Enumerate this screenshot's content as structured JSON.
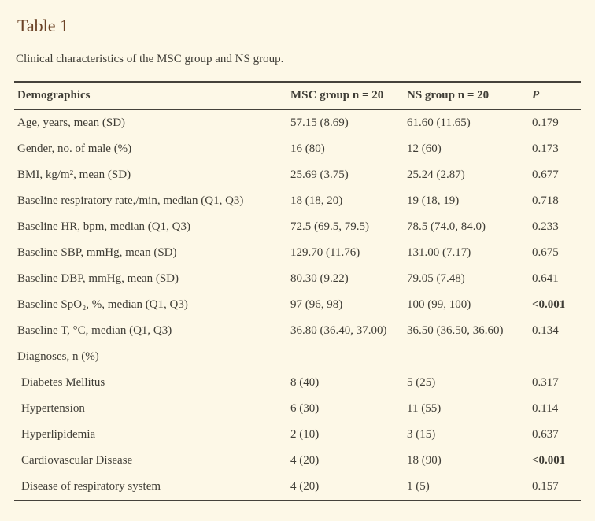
{
  "title": "Table 1",
  "caption": "Clinical characteristics of the MSC group and NS group.",
  "colors": {
    "page_background": "#fdf8e7",
    "title_text": "#6b4226",
    "body_text": "#3f3d36",
    "table_rule": "#45423b"
  },
  "table": {
    "headers": [
      "Demographics",
      "MSC group n = 20",
      "NS group n = 20",
      "P"
    ],
    "rows": [
      {
        "label": "Age, years, mean (SD)",
        "msc": "57.15 (8.69)",
        "ns": "61.60 (11.65)",
        "p": "0.179",
        "indent": false,
        "p_bold": false
      },
      {
        "label": "Gender, no. of male (%)",
        "msc": "16 (80)",
        "ns": "12 (60)",
        "p": "0.173",
        "indent": false,
        "p_bold": false
      },
      {
        "label": "BMI, kg/m², mean (SD)",
        "msc": "25.69 (3.75)",
        "ns": "25.24 (2.87)",
        "p": "0.677",
        "indent": false,
        "p_bold": false
      },
      {
        "label": "Baseline respiratory rate,/min, median (Q1, Q3)",
        "msc": "18 (18, 20)",
        "ns": "19 (18, 19)",
        "p": "0.718",
        "indent": false,
        "p_bold": false
      },
      {
        "label": "Baseline HR, bpm, median (Q1, Q3)",
        "msc": "72.5 (69.5, 79.5)",
        "ns": "78.5 (74.0, 84.0)",
        "p": "0.233",
        "indent": false,
        "p_bold": false
      },
      {
        "label": "Baseline SBP, mmHg, mean (SD)",
        "msc": "129.70 (11.76)",
        "ns": "131.00 (7.17)",
        "p": "0.675",
        "indent": false,
        "p_bold": false
      },
      {
        "label": "Baseline DBP, mmHg, mean (SD)",
        "msc": "80.30 (9.22)",
        "ns": "79.05 (7.48)",
        "p": "0.641",
        "indent": false,
        "p_bold": false
      },
      {
        "label": "Baseline SpO₂, %, median (Q1, Q3)",
        "msc": "97 (96, 98)",
        "ns": "100 (99, 100)",
        "p": "<0.001",
        "indent": false,
        "p_bold": true
      },
      {
        "label": "Baseline T, °C, median (Q1, Q3)",
        "msc": "36.80 (36.40, 37.00)",
        "ns": "36.50 (36.50, 36.60)",
        "p": "0.134",
        "indent": false,
        "p_bold": false
      },
      {
        "label": "Diagnoses, n (%)",
        "msc": "",
        "ns": "",
        "p": "",
        "indent": false,
        "p_bold": false
      },
      {
        "label": "Diabetes Mellitus",
        "msc": "8 (40)",
        "ns": "5 (25)",
        "p": "0.317",
        "indent": true,
        "p_bold": false
      },
      {
        "label": "Hypertension",
        "msc": "6 (30)",
        "ns": "11 (55)",
        "p": "0.114",
        "indent": true,
        "p_bold": false
      },
      {
        "label": "Hyperlipidemia",
        "msc": "2 (10)",
        "ns": "3 (15)",
        "p": "0.637",
        "indent": true,
        "p_bold": false
      },
      {
        "label": "Cardiovascular Disease",
        "msc": "4 (20)",
        "ns": "18 (90)",
        "p": "<0.001",
        "indent": true,
        "p_bold": true
      },
      {
        "label": "Disease of respiratory system",
        "msc": "4 (20)",
        "ns": "1 (5)",
        "p": "0.157",
        "indent": true,
        "p_bold": false
      }
    ]
  }
}
